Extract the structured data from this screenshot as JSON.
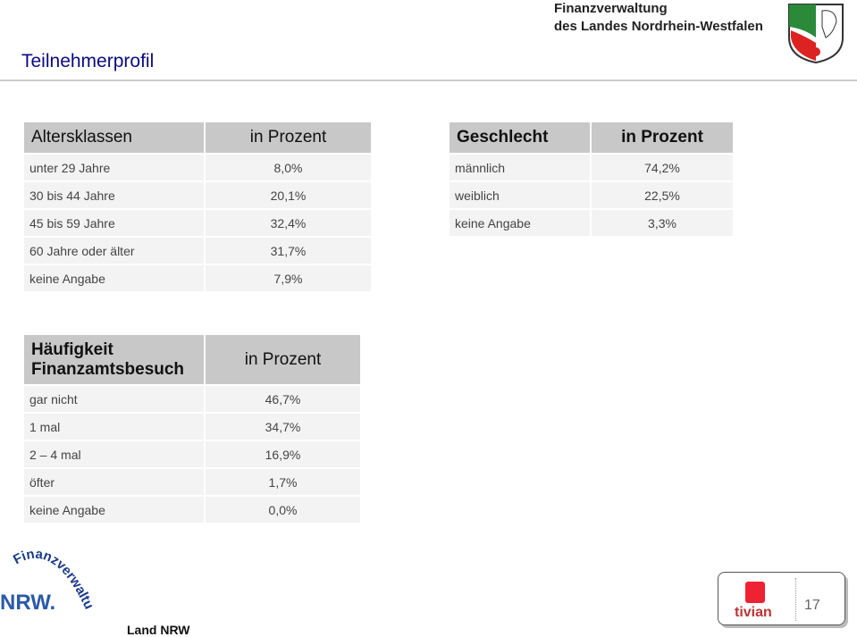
{
  "header": {
    "title": "Teilnehmerprofil",
    "org_line1": "Finanzverwaltung",
    "org_line2": "des Landes Nordrhein-Westfalen"
  },
  "tables": [
    {
      "header": [
        "Altersklassen",
        "in Prozent"
      ],
      "rows": [
        [
          "unter 29 Jahre",
          "8,0%"
        ],
        [
          "30 bis 44 Jahre",
          "20,1%"
        ],
        [
          "45 bis 59 Jahre",
          "32,4%"
        ],
        [
          "60 Jahre oder älter",
          "31,7%"
        ],
        [
          "keine Angabe",
          "7,9%"
        ]
      ]
    },
    {
      "header": [
        "Geschlecht",
        "in Prozent"
      ],
      "rows": [
        [
          "männlich",
          "74,2%"
        ],
        [
          "weiblich",
          "22,5%"
        ],
        [
          "keine Angabe",
          "3,3%"
        ]
      ]
    },
    {
      "header": [
        "Häufigkeit Finanzamtsbesuch",
        "in Prozent"
      ],
      "rows": [
        [
          "gar nicht",
          "46,7%"
        ],
        [
          "1 mal",
          "34,7%"
        ],
        [
          "2 – 4  mal",
          "16,9%"
        ],
        [
          "öfter",
          "1,7%"
        ],
        [
          "keine Angabe",
          "0,0%"
        ]
      ]
    }
  ],
  "footer": {
    "logo_arc": "Finanzverwaltung",
    "logo_nrw": "NRW.",
    "label": "Land NRW",
    "brand": "tivian",
    "page": "17"
  }
}
